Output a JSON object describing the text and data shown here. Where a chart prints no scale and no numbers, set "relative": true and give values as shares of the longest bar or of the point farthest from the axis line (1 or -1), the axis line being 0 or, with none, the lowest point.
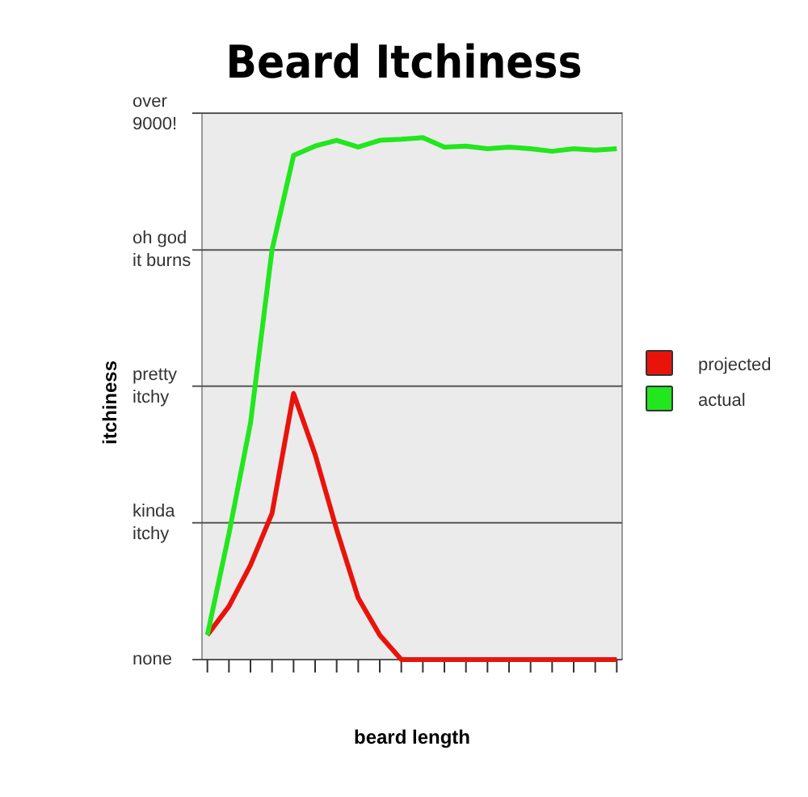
{
  "chart_data": {
    "type": "line",
    "title": "Beard Itchiness",
    "xlabel": "beard length",
    "ylabel": "itchiness",
    "relative": true,
    "categories": [
      null,
      null,
      null,
      null,
      null,
      null,
      null,
      null,
      null,
      null,
      null,
      null,
      null,
      null,
      null,
      null,
      null,
      null,
      null,
      null
    ],
    "series": [
      {
        "name": "projected",
        "color": "#e8140c",
        "values": [
          0.047,
          0.102,
          0.181,
          0.28,
          0.51,
          0.393,
          0.249,
          0.118,
          0.047,
          0,
          0,
          0,
          0,
          0,
          0,
          0,
          0,
          0,
          0,
          0
        ]
      },
      {
        "name": "actual",
        "color": "#22e61e",
        "values": [
          0.047,
          0.241,
          0.453,
          0.785,
          0.966,
          0.984,
          0.995,
          0.982,
          0.995,
          0.997,
          1,
          0.982,
          0.984,
          0.979,
          0.982,
          0.979,
          0.974,
          0.979,
          0.976,
          0.979
        ]
      }
    ],
    "ref_lines": [
      {
        "axis": "y",
        "value": 0,
        "label": "none"
      },
      {
        "axis": "y",
        "value": 0.262,
        "label": "kinda\nitchy"
      },
      {
        "axis": "y",
        "value": 0.524,
        "label": "pretty\nitchy"
      },
      {
        "axis": "y",
        "value": 0.785,
        "label": "oh god\nit burns"
      },
      {
        "axis": "y",
        "value": 1.047,
        "label": "over\n9000!"
      }
    ],
    "legend": "right",
    "marker": "none",
    "line_style": "solid"
  }
}
